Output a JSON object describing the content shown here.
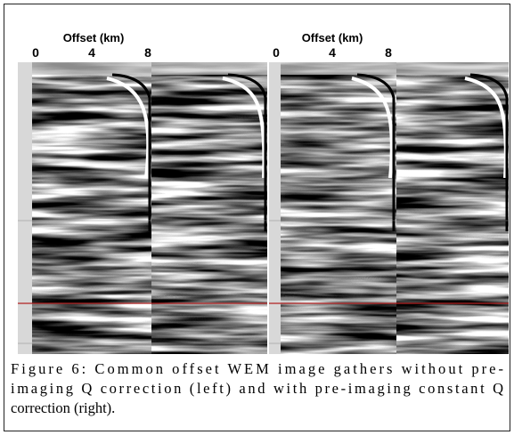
{
  "figure": {
    "panels": [
      {
        "axis_label": "Offset (km)",
        "ticks": [
          "0",
          "4",
          "8"
        ]
      },
      {
        "axis_label": "Offset (km)",
        "ticks": [
          "0",
          "4",
          "8"
        ]
      }
    ],
    "caption_lines": [
      "Figure 6: Common offset WEM image gathers without pre-",
      "imaging Q correction (left) and with pre-imaging constant Q",
      "correction (right)."
    ]
  }
}
